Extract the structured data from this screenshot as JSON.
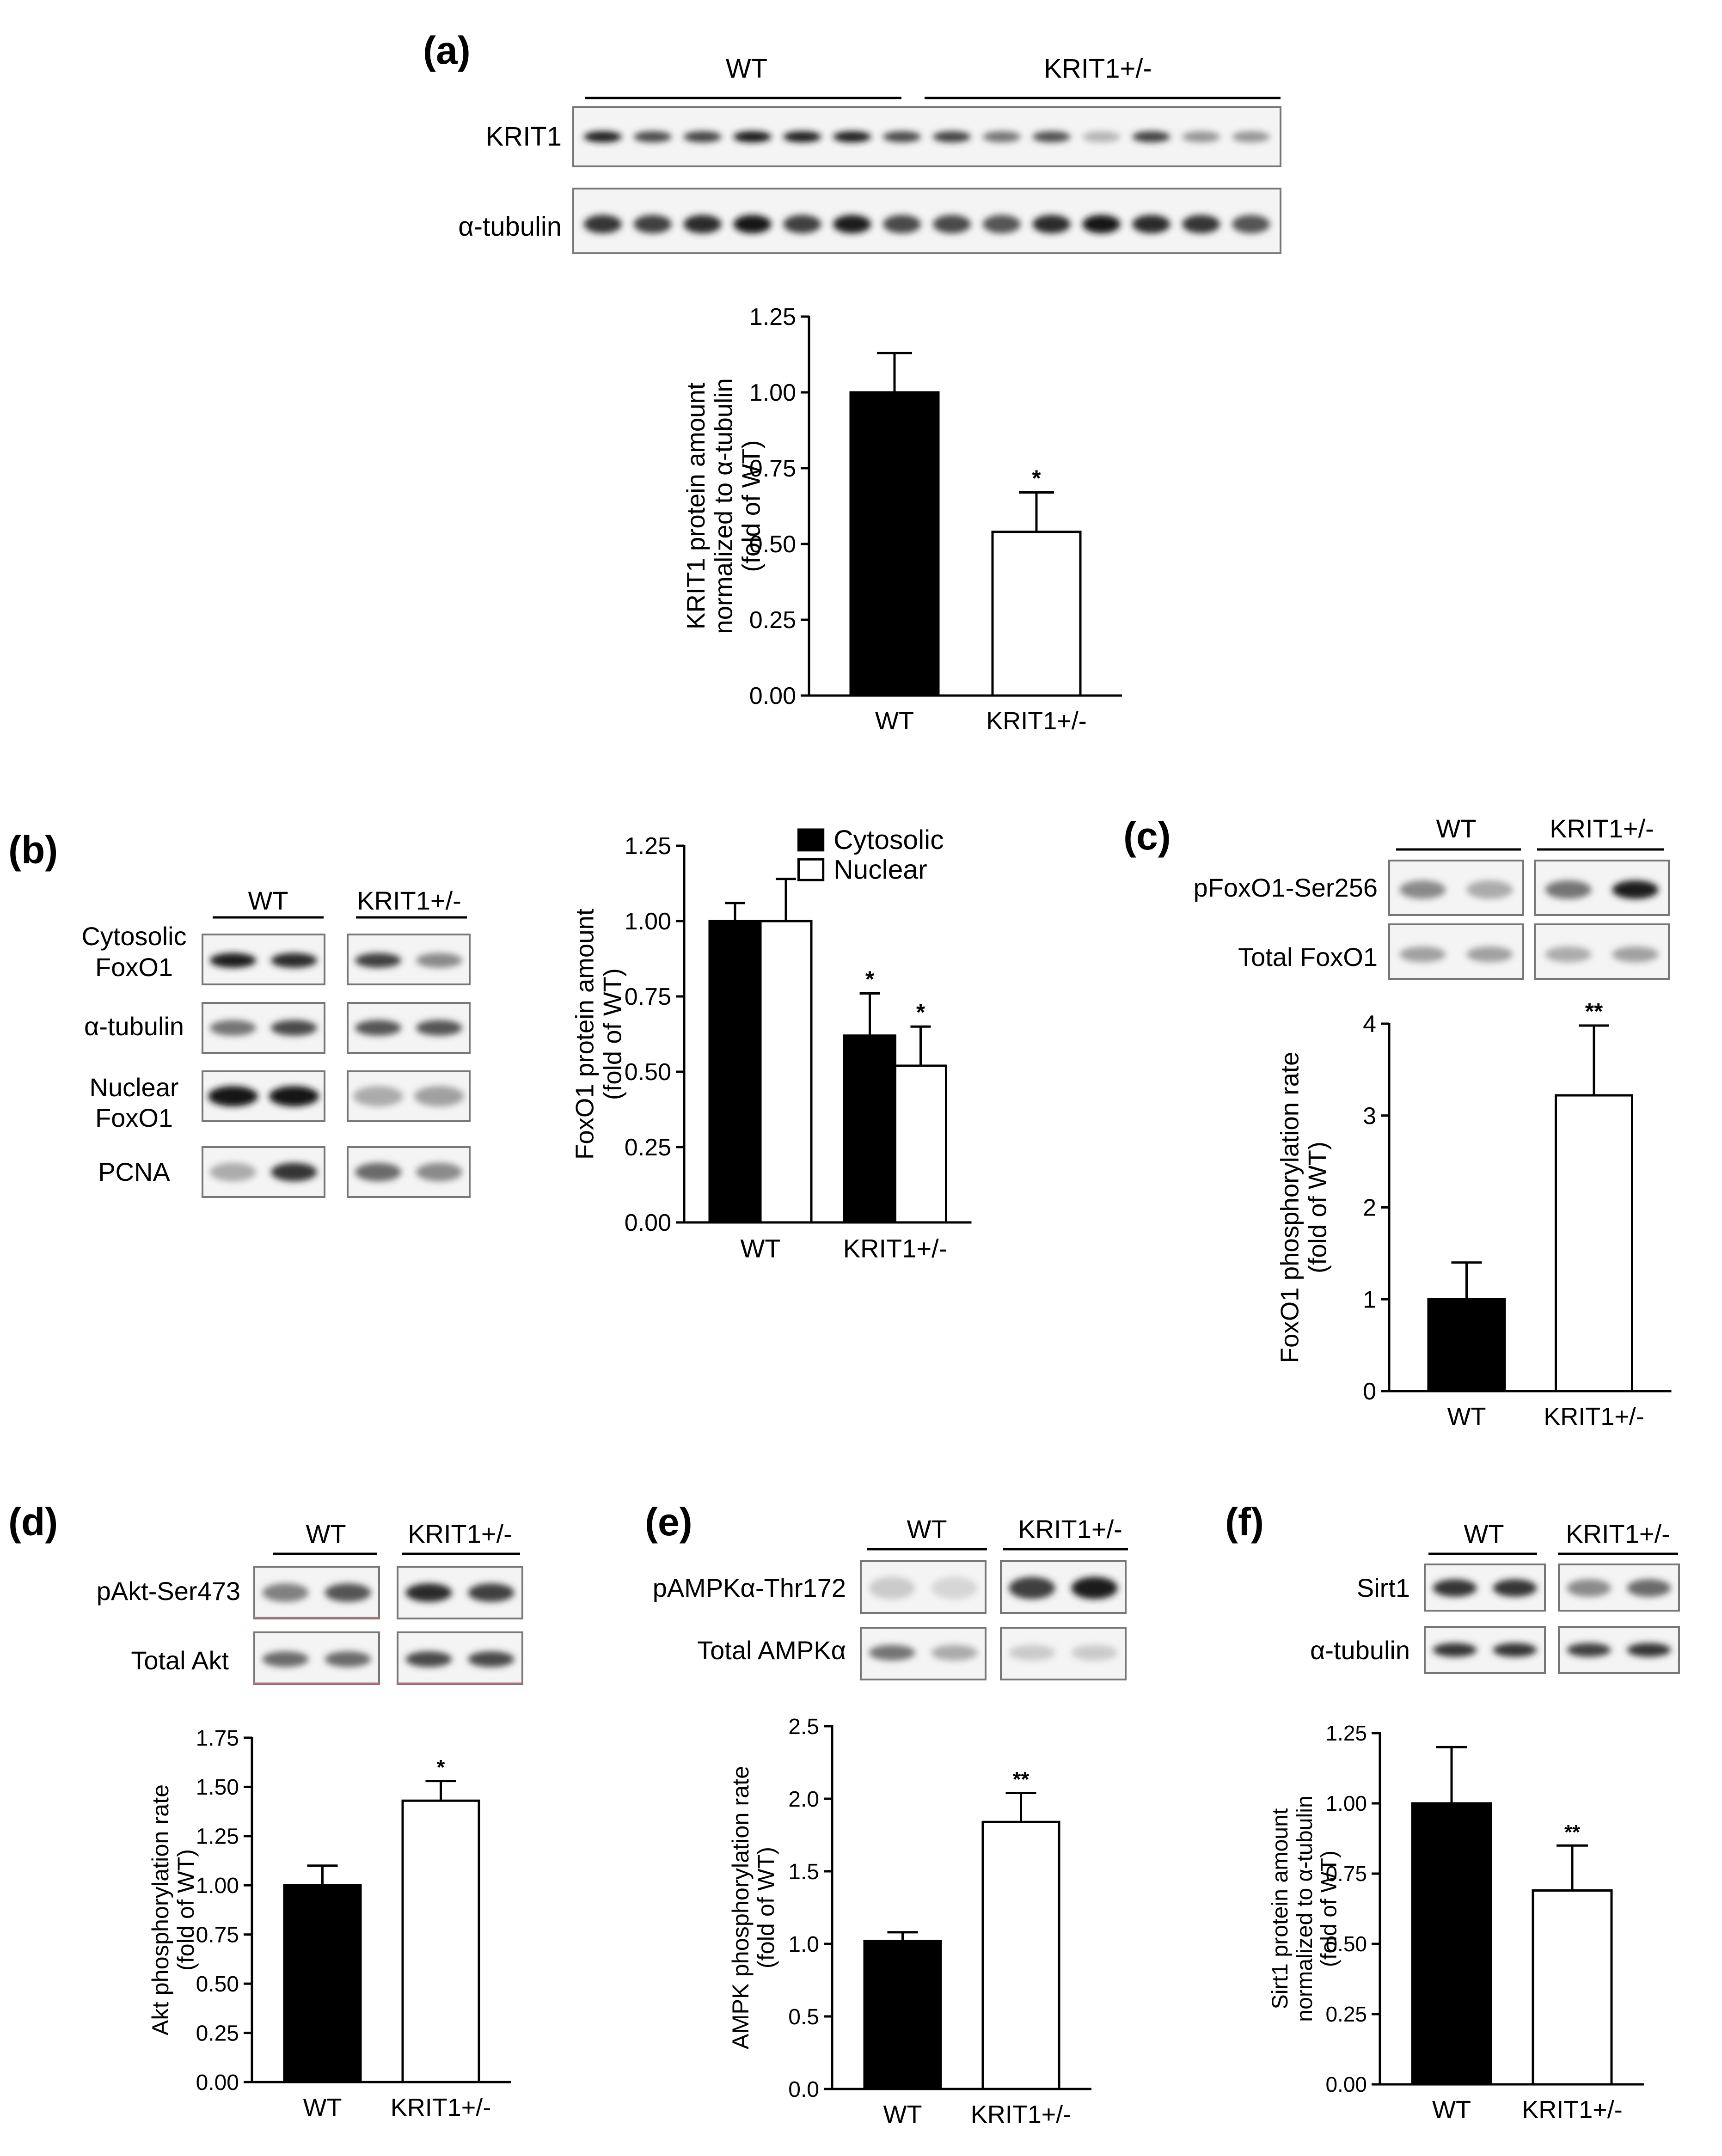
{
  "panels": {
    "a": {
      "label": "(a)",
      "groups": [
        "WT",
        "KRIT1+/-"
      ],
      "blots": [
        {
          "label": "KRIT1",
          "intensities": [
            0.95,
            0.75,
            0.78,
            0.98,
            0.95,
            0.95,
            0.75,
            0.8,
            0.55,
            0.72,
            0.25,
            0.8,
            0.4,
            0.4
          ]
        },
        {
          "label": "α-tubulin",
          "intensities": [
            0.85,
            0.8,
            0.9,
            1.0,
            0.8,
            0.95,
            0.75,
            0.75,
            0.7,
            0.9,
            0.98,
            0.9,
            0.85,
            0.7
          ]
        }
      ]
    },
    "b": {
      "label": "(b)",
      "groups": [
        "WT",
        "KRIT1+/-"
      ],
      "blots": [
        {
          "label": "Cytosolic FoxO1",
          "lines": [
            "Cytosolic",
            "FoxO1"
          ],
          "intensities": [
            0.95,
            0.9,
            0.8,
            0.45
          ]
        },
        {
          "label": "α-tubulin",
          "lines": [
            "α-tubulin"
          ],
          "intensities": [
            0.55,
            0.75,
            0.7,
            0.7
          ]
        },
        {
          "label": "Nuclear FoxO1",
          "lines": [
            "Nuclear",
            "FoxO1"
          ],
          "intensities": [
            1.0,
            1.0,
            0.3,
            0.35
          ]
        },
        {
          "label": "PCNA",
          "lines": [
            "PCNA"
          ],
          "intensities": [
            0.3,
            0.85,
            0.6,
            0.45
          ]
        }
      ]
    },
    "c": {
      "label": "(c)",
      "groups": [
        "WT",
        "KRIT1+/-"
      ],
      "blots": [
        {
          "label": "pFoxO1-Ser256",
          "intensities": [
            0.45,
            0.3,
            0.55,
            0.95
          ]
        },
        {
          "label": "Total FoxO1",
          "intensities": [
            0.35,
            0.35,
            0.3,
            0.35
          ]
        }
      ]
    },
    "d": {
      "label": "(d)",
      "groups": [
        "WT",
        "KRIT1+/-"
      ],
      "blots": [
        {
          "label": "pAkt-Ser473",
          "intensities": [
            0.5,
            0.7,
            0.9,
            0.8
          ]
        },
        {
          "label": "Total Akt",
          "intensities": [
            0.6,
            0.6,
            0.75,
            0.75
          ]
        }
      ]
    },
    "e": {
      "label": "(e)",
      "groups": [
        "WT",
        "KRIT1+/-"
      ],
      "blots": [
        {
          "label": "pAMPKα-Thr172",
          "intensities": [
            0.15,
            0.1,
            0.8,
            0.95
          ]
        },
        {
          "label": "Total AMPKα",
          "intensities": [
            0.55,
            0.3,
            0.15,
            0.15
          ]
        }
      ]
    },
    "f": {
      "label": "(f)",
      "groups": [
        "WT",
        "KRIT1+/-"
      ],
      "blots": [
        {
          "label": "Sirt1",
          "intensities": [
            0.85,
            0.85,
            0.45,
            0.6
          ]
        },
        {
          "label": "α-tubulin",
          "intensities": [
            0.85,
            0.85,
            0.8,
            0.85
          ]
        }
      ]
    }
  },
  "chart_data": [
    {
      "panel": "a",
      "type": "bar",
      "categories": [
        "WT",
        "KRIT1+/-"
      ],
      "values": [
        1.0,
        0.54
      ],
      "errors": [
        0.13,
        0.13
      ],
      "significance": [
        "",
        "*"
      ],
      "ylabel": [
        "KRIT1 protein amount",
        "normalized to α-tubulin",
        "(fold of WT)"
      ],
      "ylim": [
        0,
        1.25
      ],
      "ticks": [
        "0.00",
        "0.25",
        "0.50",
        "0.75",
        "1.00",
        "1.25"
      ],
      "fills": [
        "#000000",
        "#ffffff"
      ]
    },
    {
      "panel": "b",
      "type": "bar",
      "categories": [
        "WT",
        "KRIT1+/-"
      ],
      "series": [
        {
          "name": "Cytosolic",
          "color": "#000000",
          "values": [
            1.0,
            0.62
          ],
          "errors": [
            0.06,
            0.14
          ],
          "significance": [
            "",
            "*"
          ]
        },
        {
          "name": "Nuclear",
          "color": "#ffffff",
          "values": [
            1.0,
            0.52
          ],
          "errors": [
            0.14,
            0.13
          ],
          "significance": [
            "",
            "*"
          ]
        }
      ],
      "ylabel": [
        "FoxO1 protein amount",
        "(fold of WT)"
      ],
      "ylim": [
        0,
        1.25
      ],
      "ticks": [
        "0.00",
        "0.25",
        "0.50",
        "0.75",
        "1.00",
        "1.25"
      ],
      "legend": "top-right"
    },
    {
      "panel": "c",
      "type": "bar",
      "categories": [
        "WT",
        "KRIT1+/-"
      ],
      "values": [
        1.0,
        3.22
      ],
      "errors": [
        0.4,
        0.76
      ],
      "significance": [
        "",
        "**"
      ],
      "ylabel": [
        "FoxO1 phosphorylation rate",
        "(fold of WT)"
      ],
      "ylim": [
        0,
        4
      ],
      "ticks": [
        "0",
        "1",
        "2",
        "3",
        "4"
      ],
      "fills": [
        "#000000",
        "#ffffff"
      ]
    },
    {
      "panel": "d",
      "type": "bar",
      "categories": [
        "WT",
        "KRIT1+/-"
      ],
      "values": [
        1.0,
        1.43
      ],
      "errors": [
        0.1,
        0.1
      ],
      "significance": [
        "",
        "*"
      ],
      "ylabel": [
        "Akt phosphorylation rate",
        "(fold of WT)"
      ],
      "ylim": [
        0,
        1.75
      ],
      "ticks": [
        "0.00",
        "0.25",
        "0.50",
        "0.75",
        "1.00",
        "1.25",
        "1.50",
        "1.75"
      ],
      "fills": [
        "#000000",
        "#ffffff"
      ]
    },
    {
      "panel": "e",
      "type": "bar",
      "categories": [
        "WT",
        "KRIT1+/-"
      ],
      "values": [
        1.02,
        1.84
      ],
      "errors": [
        0.06,
        0.2
      ],
      "significance": [
        "",
        "**"
      ],
      "ylabel": [
        "AMPK phosphorylation rate",
        "(fold of WT)"
      ],
      "ylim": [
        0,
        2.5
      ],
      "ticks": [
        "0.0",
        "0.5",
        "1.0",
        "1.5",
        "2.0",
        "2.5"
      ],
      "fills": [
        "#000000",
        "#ffffff"
      ]
    },
    {
      "panel": "f",
      "type": "bar",
      "categories": [
        "WT",
        "KRIT1+/-"
      ],
      "values": [
        1.0,
        0.69
      ],
      "errors": [
        0.2,
        0.16
      ],
      "significance": [
        "",
        "**"
      ],
      "ylabel": [
        "Sirt1 protein amount",
        "normalized to α-tubulin",
        "(fold of WT)"
      ],
      "ylim": [
        0,
        1.25
      ],
      "ticks": [
        "0.00",
        "0.25",
        "0.50",
        "0.75",
        "1.00",
        "1.25"
      ],
      "fills": [
        "#000000",
        "#ffffff"
      ]
    }
  ]
}
